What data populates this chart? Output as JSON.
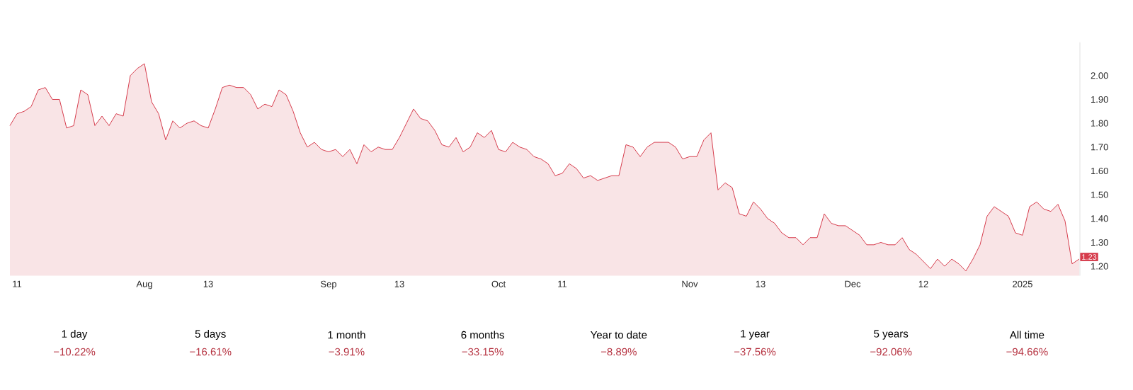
{
  "chart_data": {
    "type": "area",
    "categories": [
      null,
      "11",
      null,
      null,
      null,
      null,
      null,
      null,
      null,
      null,
      null,
      null,
      null,
      null,
      null,
      null,
      null,
      null,
      null,
      "Aug",
      null,
      null,
      null,
      null,
      null,
      null,
      null,
      null,
      "13",
      null,
      null,
      null,
      null,
      null,
      null,
      null,
      null,
      null,
      null,
      null,
      null,
      null,
      null,
      null,
      null,
      "Sep",
      null,
      null,
      null,
      null,
      null,
      null,
      null,
      null,
      null,
      "13",
      null,
      null,
      null,
      null,
      null,
      null,
      null,
      null,
      null,
      null,
      null,
      null,
      null,
      "Oct",
      null,
      null,
      null,
      null,
      null,
      null,
      null,
      null,
      "11",
      null,
      null,
      null,
      null,
      null,
      null,
      null,
      null,
      null,
      null,
      null,
      null,
      null,
      null,
      null,
      null,
      null,
      "Nov",
      null,
      null,
      null,
      null,
      null,
      null,
      null,
      null,
      null,
      "13",
      null,
      null,
      null,
      null,
      null,
      null,
      null,
      null,
      null,
      null,
      null,
      null,
      "Dec",
      null,
      null,
      null,
      null,
      null,
      null,
      null,
      null,
      null,
      "12",
      null,
      null,
      null,
      null,
      null,
      null,
      null,
      null,
      null,
      null,
      null,
      null,
      null,
      "2025",
      null,
      null,
      null,
      null,
      null,
      null,
      null,
      null
    ],
    "values": [
      1.79,
      1.84,
      1.85,
      1.87,
      1.94,
      1.95,
      1.9,
      1.9,
      1.78,
      1.79,
      1.94,
      1.92,
      1.79,
      1.83,
      1.79,
      1.84,
      1.83,
      2.0,
      2.03,
      2.05,
      1.89,
      1.84,
      1.73,
      1.81,
      1.78,
      1.8,
      1.81,
      1.79,
      1.78,
      1.86,
      1.95,
      1.96,
      1.95,
      1.95,
      1.92,
      1.86,
      1.88,
      1.87,
      1.94,
      1.92,
      1.85,
      1.76,
      1.7,
      1.72,
      1.69,
      1.68,
      1.69,
      1.66,
      1.69,
      1.63,
      1.71,
      1.68,
      1.7,
      1.69,
      1.69,
      1.74,
      1.8,
      1.86,
      1.82,
      1.81,
      1.77,
      1.71,
      1.7,
      1.74,
      1.68,
      1.7,
      1.76,
      1.74,
      1.77,
      1.69,
      1.68,
      1.72,
      1.7,
      1.69,
      1.66,
      1.65,
      1.63,
      1.58,
      1.59,
      1.63,
      1.61,
      1.57,
      1.58,
      1.56,
      1.57,
      1.58,
      1.58,
      1.71,
      1.7,
      1.66,
      1.7,
      1.72,
      1.72,
      1.72,
      1.7,
      1.65,
      1.66,
      1.66,
      1.73,
      1.76,
      1.52,
      1.55,
      1.53,
      1.42,
      1.41,
      1.47,
      1.44,
      1.4,
      1.38,
      1.34,
      1.32,
      1.32,
      1.29,
      1.32,
      1.32,
      1.42,
      1.38,
      1.37,
      1.37,
      1.35,
      1.33,
      1.29,
      1.29,
      1.3,
      1.29,
      1.29,
      1.32,
      1.27,
      1.25,
      1.22,
      1.19,
      1.23,
      1.2,
      1.23,
      1.21,
      1.18,
      1.23,
      1.29,
      1.41,
      1.45,
      1.43,
      1.41,
      1.34,
      1.33,
      1.45,
      1.47,
      1.44,
      1.43,
      1.46,
      1.39,
      1.21,
      1.23
    ],
    "color": "#d63c4c",
    "ylim": [
      1.16,
      2.14
    ],
    "yticks": [
      {
        "value": 1.2,
        "label": "1.20"
      },
      {
        "value": 1.3,
        "label": "1.30"
      },
      {
        "value": 1.4,
        "label": "1.40"
      },
      {
        "value": 1.5,
        "label": "1.50"
      },
      {
        "value": 1.6,
        "label": "1.60"
      },
      {
        "value": 1.7,
        "label": "1.70"
      },
      {
        "value": 1.8,
        "label": "1.80"
      },
      {
        "value": 1.9,
        "label": "1.90"
      },
      {
        "value": 2.0,
        "label": "2.00"
      }
    ],
    "annotations": [
      "1 day",
      "−10.22%",
      "5 days",
      "−16.61%",
      "1 month",
      "−3.91%",
      "6 months",
      "−33.15%",
      "Year to date",
      "−8.89%",
      "1 year",
      "−37.56%",
      "5 years",
      "−92.06%",
      "All time",
      "−94.66%",
      "1.23"
    ]
  }
}
